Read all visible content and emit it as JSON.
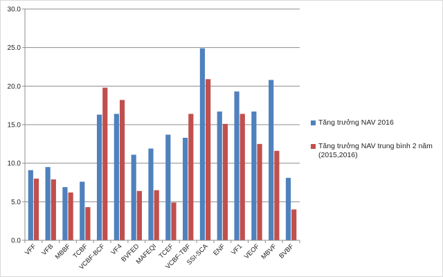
{
  "chart_data": {
    "type": "bar",
    "categories": [
      "VFF",
      "VFB",
      "MBBF",
      "TCBF",
      "VCBF-BCF",
      "VF4",
      "BVFED",
      "MAFEQI",
      "TCEF",
      "VCBF-TBF",
      "SSI-SCA",
      "ENF",
      "VF1",
      "VEOF",
      "MBVF",
      "BVBF"
    ],
    "series": [
      {
        "name": "Tăng trưởng NAV 2016",
        "color": "#4f81bd",
        "values": [
          9.1,
          9.5,
          6.9,
          7.6,
          16.3,
          16.4,
          11.1,
          11.9,
          13.7,
          13.3,
          24.9,
          16.7,
          19.3,
          16.7,
          20.8,
          8.1
        ]
      },
      {
        "name": "Tăng trưởng NAV trung bình 2 năm (2015,2016)",
        "color": "#c0504d",
        "values": [
          8.0,
          7.9,
          6.2,
          4.3,
          19.8,
          18.2,
          6.4,
          6.5,
          4.9,
          16.4,
          20.9,
          15.1,
          16.4,
          12.5,
          11.6,
          4.0
        ]
      }
    ],
    "ylim": [
      0,
      30
    ],
    "yticks": [
      "0.0",
      "5.0",
      "10.0",
      "15.0",
      "20.0",
      "25.0",
      "30.0"
    ],
    "grid": true,
    "legend_position": "right"
  }
}
